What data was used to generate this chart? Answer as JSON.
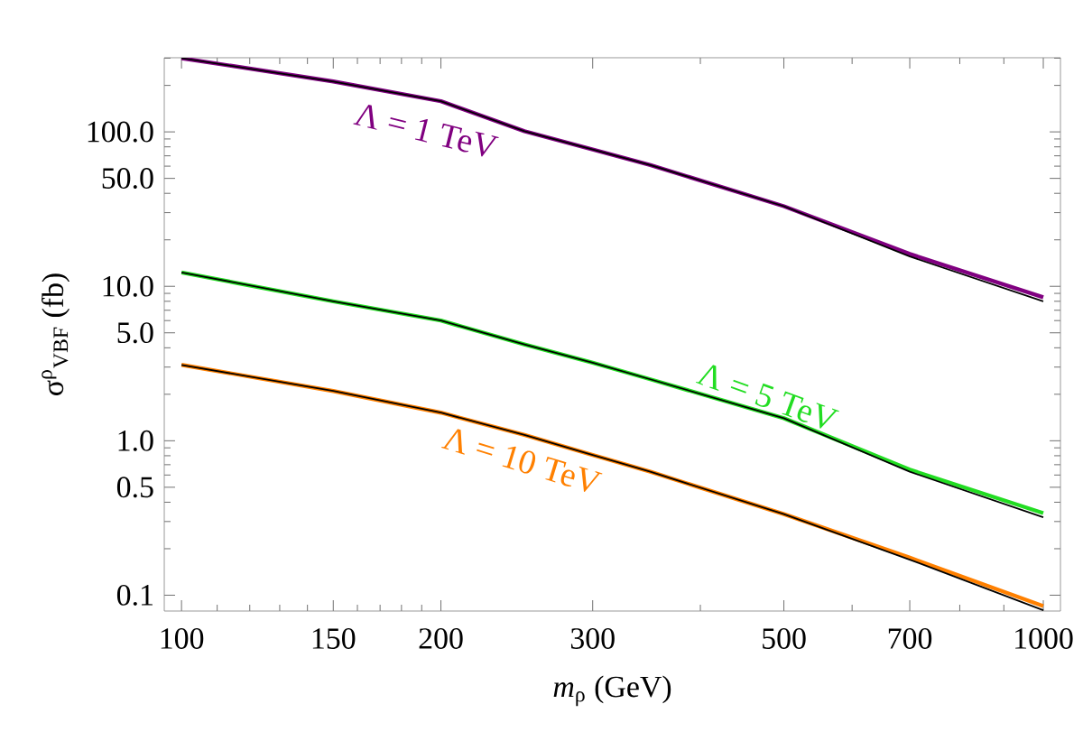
{
  "chart_data": {
    "type": "line",
    "xlabel": "*m*$_{ρ}$ (GeV)",
    "ylabel": "σ$^{ρ}$$_{VBF}$ (fb)",
    "log": "xy",
    "x": [
      100,
      150,
      200,
      250,
      300,
      350,
      500,
      700,
      1000
    ],
    "series": [
      {
        "color": "#800080",
        "values": [
          300,
          212,
          158,
          101,
          77,
          61,
          33,
          16.2,
          8.5
        ]
      },
      {
        "color": "#000000",
        "values": [
          300,
          212,
          158,
          101,
          77,
          61,
          33,
          15.6,
          8.0
        ]
      },
      {
        "color": "#22dd22",
        "values": [
          12.3,
          8.0,
          6.0,
          4.2,
          3.2,
          2.5,
          1.4,
          0.65,
          0.34
        ]
      },
      {
        "color": "#000000",
        "values": [
          12.3,
          8.0,
          6.0,
          4.2,
          3.2,
          2.5,
          1.4,
          0.63,
          0.32
        ]
      },
      {
        "color": "#ff8000",
        "values": [
          3.1,
          2.1,
          1.52,
          1.09,
          0.81,
          0.63,
          0.335,
          0.175,
          0.085
        ]
      },
      {
        "color": "#000000",
        "values": [
          3.1,
          2.1,
          1.52,
          1.09,
          0.81,
          0.63,
          0.335,
          0.17,
          0.08
        ]
      }
    ],
    "xlim": [
      95.5,
      1047
    ],
    "ylim": [
      0.079,
      302
    ],
    "xticks": [
      100,
      150,
      200,
      300,
      500,
      700,
      1000,
      {
        "value": 110,
        "label": null
      },
      {
        "value": 120,
        "label": null
      },
      {
        "value": 130,
        "label": null
      },
      {
        "value": 140,
        "label": null
      },
      {
        "value": 160,
        "label": null
      },
      {
        "value": 170,
        "label": null
      },
      {
        "value": 180,
        "label": null
      },
      {
        "value": 190,
        "label": null
      },
      {
        "value": 400,
        "label": null
      },
      {
        "value": 600,
        "label": null
      },
      {
        "value": 800,
        "label": null
      },
      {
        "value": 900,
        "label": null
      }
    ],
    "yticks": [
      {
        "value": 0.1,
        "label": "0.1"
      },
      {
        "value": 0.5,
        "label": "0.5"
      },
      {
        "value": 1,
        "label": "1.0"
      },
      {
        "value": 5,
        "label": "5.0"
      },
      {
        "value": 10,
        "label": "10.0"
      },
      {
        "value": 50,
        "label": "50.0"
      },
      {
        "value": 100,
        "label": "100.0"
      },
      {
        "value": 0.2,
        "label": null
      },
      {
        "value": 0.3,
        "label": null
      },
      {
        "value": 0.4,
        "label": null
      },
      {
        "value": 0.6,
        "label": null
      },
      {
        "value": 0.7,
        "label": null
      },
      {
        "value": 0.8,
        "label": null
      },
      {
        "value": 0.9,
        "label": null
      },
      {
        "value": 2,
        "label": null
      },
      {
        "value": 3,
        "label": null
      },
      {
        "value": 4,
        "label": null
      },
      {
        "value": 6,
        "label": null
      },
      {
        "value": 7,
        "label": null
      },
      {
        "value": 8,
        "label": null
      },
      {
        "value": 9,
        "label": null
      },
      {
        "value": 20,
        "label": null
      },
      {
        "value": 30,
        "label": null
      },
      {
        "value": 40,
        "label": null
      },
      {
        "value": 60,
        "label": null
      },
      {
        "value": 70,
        "label": null
      },
      {
        "value": 80,
        "label": null
      },
      {
        "value": 90,
        "label": null
      },
      {
        "value": 200,
        "label": null
      },
      {
        "value": 300,
        "label": null
      }
    ],
    "annotations": [
      "Λ = 1 TeV",
      "Λ = 5 TeV",
      "Λ = 10 TeV"
    ]
  }
}
